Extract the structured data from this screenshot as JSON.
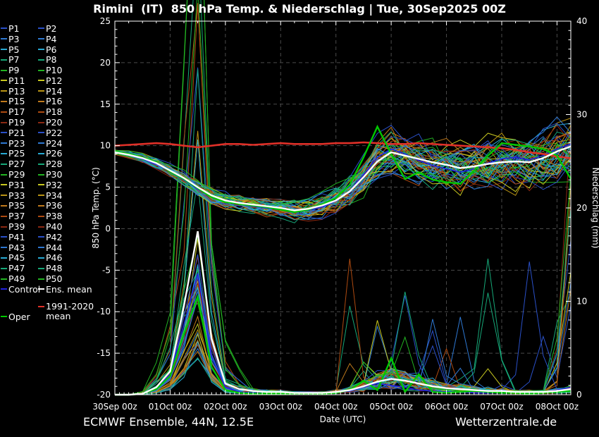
{
  "title": "Rimini  (IT)  850 hPa Temp. & Niederschlag | Tue, 30Sep2025 00Z",
  "footer": {
    "left": "ECMWF Ensemble, 44N, 12.5E",
    "right": "Wetterzentrale.de"
  },
  "legend": {
    "members": [
      "P1",
      "P2",
      "P3",
      "P4",
      "P5",
      "P6",
      "P7",
      "P8",
      "P9",
      "P10",
      "P11",
      "P12",
      "P13",
      "P14",
      "P15",
      "P16",
      "P17",
      "P18",
      "P19",
      "P20",
      "P21",
      "P22",
      "P23",
      "P24",
      "P25",
      "P26",
      "P27",
      "P28",
      "P29",
      "P30",
      "P31",
      "P32",
      "P33",
      "P34",
      "P35",
      "P36",
      "P37",
      "P38",
      "P39",
      "P40",
      "P41",
      "P42",
      "P43",
      "P44",
      "P45",
      "P46",
      "P47",
      "P48",
      "P49",
      "P50"
    ],
    "member_colors": [
      "#2a50c8",
      "#2e78d2",
      "#28aad4",
      "#16a878",
      "#22b422",
      "#c8c820",
      "#b99414",
      "#c07a1c",
      "#ae4a10",
      "#8c2812"
    ],
    "control": {
      "label": "Control",
      "color": "#2222dd"
    },
    "ens_mean": {
      "label": "Ens. mean",
      "color": "#ffffff"
    },
    "climate": {
      "label_line1": "1991-2020",
      "label_line2": "mean",
      "color": "#e03028"
    },
    "oper": {
      "label": "Oper",
      "color": "#00c800"
    }
  },
  "chart_data": {
    "type": "line",
    "title": "Rimini  (IT)  850 hPa Temp. & Niederschlag | Tue, 30Sep2025 00Z",
    "x_label": "Date (UTC)",
    "x_tick_labels": [
      "30Sep 00z",
      "01Oct 00z",
      "02Oct 00z",
      "03Oct 00z",
      "04Oct 00z",
      "05Oct 00z",
      "06Oct 00z",
      "07Oct 00z",
      "08Oct 00z"
    ],
    "x_days_span": 8.25,
    "step_days": 0.25,
    "grid": true,
    "y_left": {
      "label": "850 hPa Temp. (°C)",
      "min": -20,
      "max": 25,
      "tick_step": 5,
      "minor_step": 1
    },
    "y_right": {
      "label": "Niederschlag (mm)",
      "min": 0,
      "max": 40,
      "tick_step": 10,
      "minor_step": 1
    },
    "series": {
      "climate_mean_temp": {
        "name": "1991-2020 mean",
        "axis": "left",
        "color": "#e03028",
        "width": 2.6,
        "values": [
          10.0,
          10.1,
          10.2,
          10.3,
          10.2,
          10.0,
          9.8,
          10.0,
          10.2,
          10.2,
          10.1,
          10.2,
          10.3,
          10.2,
          10.2,
          10.2,
          10.3,
          10.3,
          10.4,
          10.3,
          10.2,
          10.2,
          10.3,
          10.2,
          10.1,
          10.0,
          9.9,
          9.8,
          9.7,
          9.5,
          9.2,
          9.0,
          8.7,
          8.5
        ]
      },
      "ens_mean_temp": {
        "name": "Ens. mean",
        "axis": "left",
        "color": "#ffffff",
        "width": 2.4,
        "values": [
          9.2,
          8.9,
          8.5,
          7.9,
          7.0,
          6.1,
          5.0,
          4.0,
          3.4,
          3.1,
          2.9,
          2.7,
          2.5,
          2.2,
          2.4,
          2.8,
          3.4,
          4.5,
          6.2,
          8.1,
          9.2,
          8.8,
          8.4,
          8.0,
          7.7,
          7.3,
          7.5,
          7.8,
          8.0,
          8.1,
          8.0,
          8.5,
          9.3,
          9.9
        ]
      },
      "oper_temp": {
        "name": "Oper",
        "axis": "left",
        "color": "#00c800",
        "width": 2.4,
        "values": [
          9.3,
          9.0,
          8.6,
          8.0,
          6.9,
          6.0,
          4.9,
          3.8,
          3.2,
          3.0,
          2.8,
          2.6,
          2.3,
          2.0,
          2.3,
          2.9,
          3.7,
          5.3,
          8.6,
          12.3,
          9.0,
          6.0,
          6.8,
          5.9,
          5.6,
          5.4,
          7.0,
          8.8,
          10.3,
          10.1,
          9.9,
          9.6,
          8.8,
          6.0
        ]
      },
      "control_temp": {
        "name": "Control",
        "axis": "left",
        "color": "#2222dd",
        "width": 1.6,
        "values": [
          9.3,
          8.9,
          8.4,
          7.8,
          6.9,
          5.9,
          4.8,
          3.8,
          3.3,
          3.0,
          2.7,
          2.5,
          2.3,
          2.0,
          2.2,
          2.6,
          3.3,
          4.6,
          6.5,
          8.6,
          9.6,
          9.0,
          8.2,
          7.6,
          7.2,
          6.8,
          7.2,
          7.9,
          8.4,
          8.6,
          8.3,
          8.8,
          9.6,
          10.2
        ]
      },
      "ens_mean_precip": {
        "name": "Ens. mean",
        "axis": "right",
        "color": "#ffffff",
        "width": 2.4,
        "values": [
          0,
          0,
          0.1,
          0.8,
          2.5,
          9.5,
          17.5,
          6.0,
          1.2,
          0.6,
          0.4,
          0.3,
          0.3,
          0.2,
          0.2,
          0.2,
          0.3,
          0.5,
          0.9,
          1.4,
          1.7,
          1.5,
          1.2,
          0.9,
          0.7,
          0.6,
          0.5,
          0.4,
          0.4,
          0.3,
          0.3,
          0.3,
          0.4,
          0.6
        ]
      },
      "oper_precip": {
        "name": "Oper",
        "axis": "right",
        "color": "#00c800",
        "width": 2.4,
        "values": [
          0,
          0,
          0.1,
          0.6,
          2.0,
          6.5,
          10.5,
          3.0,
          0.5,
          0.2,
          0.1,
          0.1,
          0.1,
          0.1,
          0.1,
          0.1,
          0.2,
          0.5,
          1.5,
          0.5,
          3.9,
          0.3,
          2.2,
          0.3,
          0.2,
          0.3,
          0.4,
          0.3,
          0.2,
          0.2,
          0.1,
          0.2,
          0.3,
          0.4
        ]
      },
      "control_precip": {
        "name": "Control",
        "axis": "right",
        "color": "#2222dd",
        "width": 1.6,
        "values": [
          0,
          0,
          0.1,
          0.7,
          2.2,
          7.5,
          13.0,
          4.0,
          0.8,
          0.3,
          0.2,
          0.1,
          0.1,
          0.1,
          0.1,
          0.1,
          0.2,
          0.4,
          0.8,
          1.2,
          1.0,
          0.8,
          0.5,
          0.4,
          0.3,
          0.3,
          0.2,
          0.2,
          0.2,
          0.2,
          0.2,
          0.3,
          0.5,
          0.8
        ]
      }
    },
    "ensemble": {
      "count": 50,
      "temp_spread": [
        0.4,
        0.5,
        0.6,
        0.7,
        0.8,
        0.9,
        1.0,
        1.0,
        1.0,
        1.0,
        1.1,
        1.1,
        1.2,
        1.3,
        1.4,
        1.5,
        1.7,
        2.0,
        2.3,
        2.5,
        2.5,
        2.5,
        2.6,
        2.7,
        2.8,
        2.8,
        2.9,
        3.0,
        3.0,
        3.1,
        3.2,
        3.3,
        3.4,
        3.5
      ],
      "precip_main_spike_peak_step": 6,
      "precip_member_peak_range_mm": [
        5,
        70
      ],
      "late_spike_max_mm": 17
    }
  }
}
